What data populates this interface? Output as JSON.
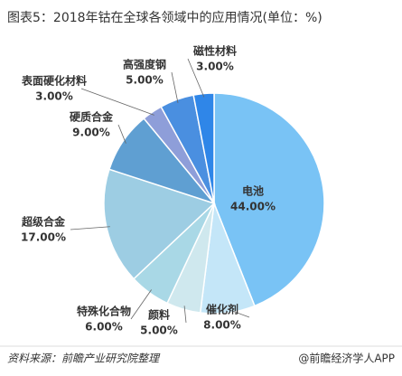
{
  "chart_data": {
    "type": "pie",
    "title": "图表5：2018年钴在全球各领域中的应用情况(单位：%)",
    "categories": [
      "电池",
      "催化剂",
      "颜料",
      "特殊化合物",
      "超级合金",
      "硬质合金",
      "表面硬化材料",
      "高强度钢",
      "磁性材料"
    ],
    "values": [
      44,
      8,
      5,
      6,
      17,
      9,
      3,
      5,
      3
    ],
    "value_labels": [
      "44.00%",
      "8.00%",
      "5.00%",
      "6.00%",
      "17.00%",
      "9.00%",
      "3.00%",
      "5.00%",
      "3.00%"
    ],
    "colors": [
      "#79c3f5",
      "#c4e6f8",
      "#cfe8ee",
      "#a9d8e6",
      "#9dcde3",
      "#5f9fd2",
      "#8e9ed9",
      "#4a8fe0",
      "#2f86e8"
    ],
    "source": "资料来源：前瞻产业研究院整理",
    "credit": "@前瞻经济学人APP"
  }
}
